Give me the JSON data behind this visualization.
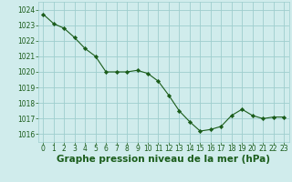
{
  "x": [
    0,
    1,
    2,
    3,
    4,
    5,
    6,
    7,
    8,
    9,
    10,
    11,
    12,
    13,
    14,
    15,
    16,
    17,
    18,
    19,
    20,
    21,
    22,
    23
  ],
  "y": [
    1023.7,
    1023.1,
    1022.8,
    1022.2,
    1021.5,
    1021.0,
    1020.0,
    1020.0,
    1020.0,
    1020.1,
    1019.9,
    1019.4,
    1018.5,
    1017.5,
    1016.8,
    1016.2,
    1016.3,
    1016.5,
    1017.2,
    1017.6,
    1017.2,
    1017.0,
    1017.1,
    1017.1
  ],
  "ylim": [
    1015.5,
    1024.5
  ],
  "yticks": [
    1016,
    1017,
    1018,
    1019,
    1020,
    1021,
    1022,
    1023,
    1024
  ],
  "xlim": [
    -0.5,
    23.5
  ],
  "xticks": [
    0,
    1,
    2,
    3,
    4,
    5,
    6,
    7,
    8,
    9,
    10,
    11,
    12,
    13,
    14,
    15,
    16,
    17,
    18,
    19,
    20,
    21,
    22,
    23
  ],
  "line_color": "#1a5c1a",
  "marker_color": "#1a5c1a",
  "bg_color": "#d0ecec",
  "grid_color": "#9ecece",
  "xlabel": "Graphe pression niveau de la mer (hPa)",
  "xlabel_color": "#1a5c1a",
  "tick_color": "#1a5c1a",
  "tick_fontsize": 5.5,
  "xlabel_fontsize": 7.5
}
